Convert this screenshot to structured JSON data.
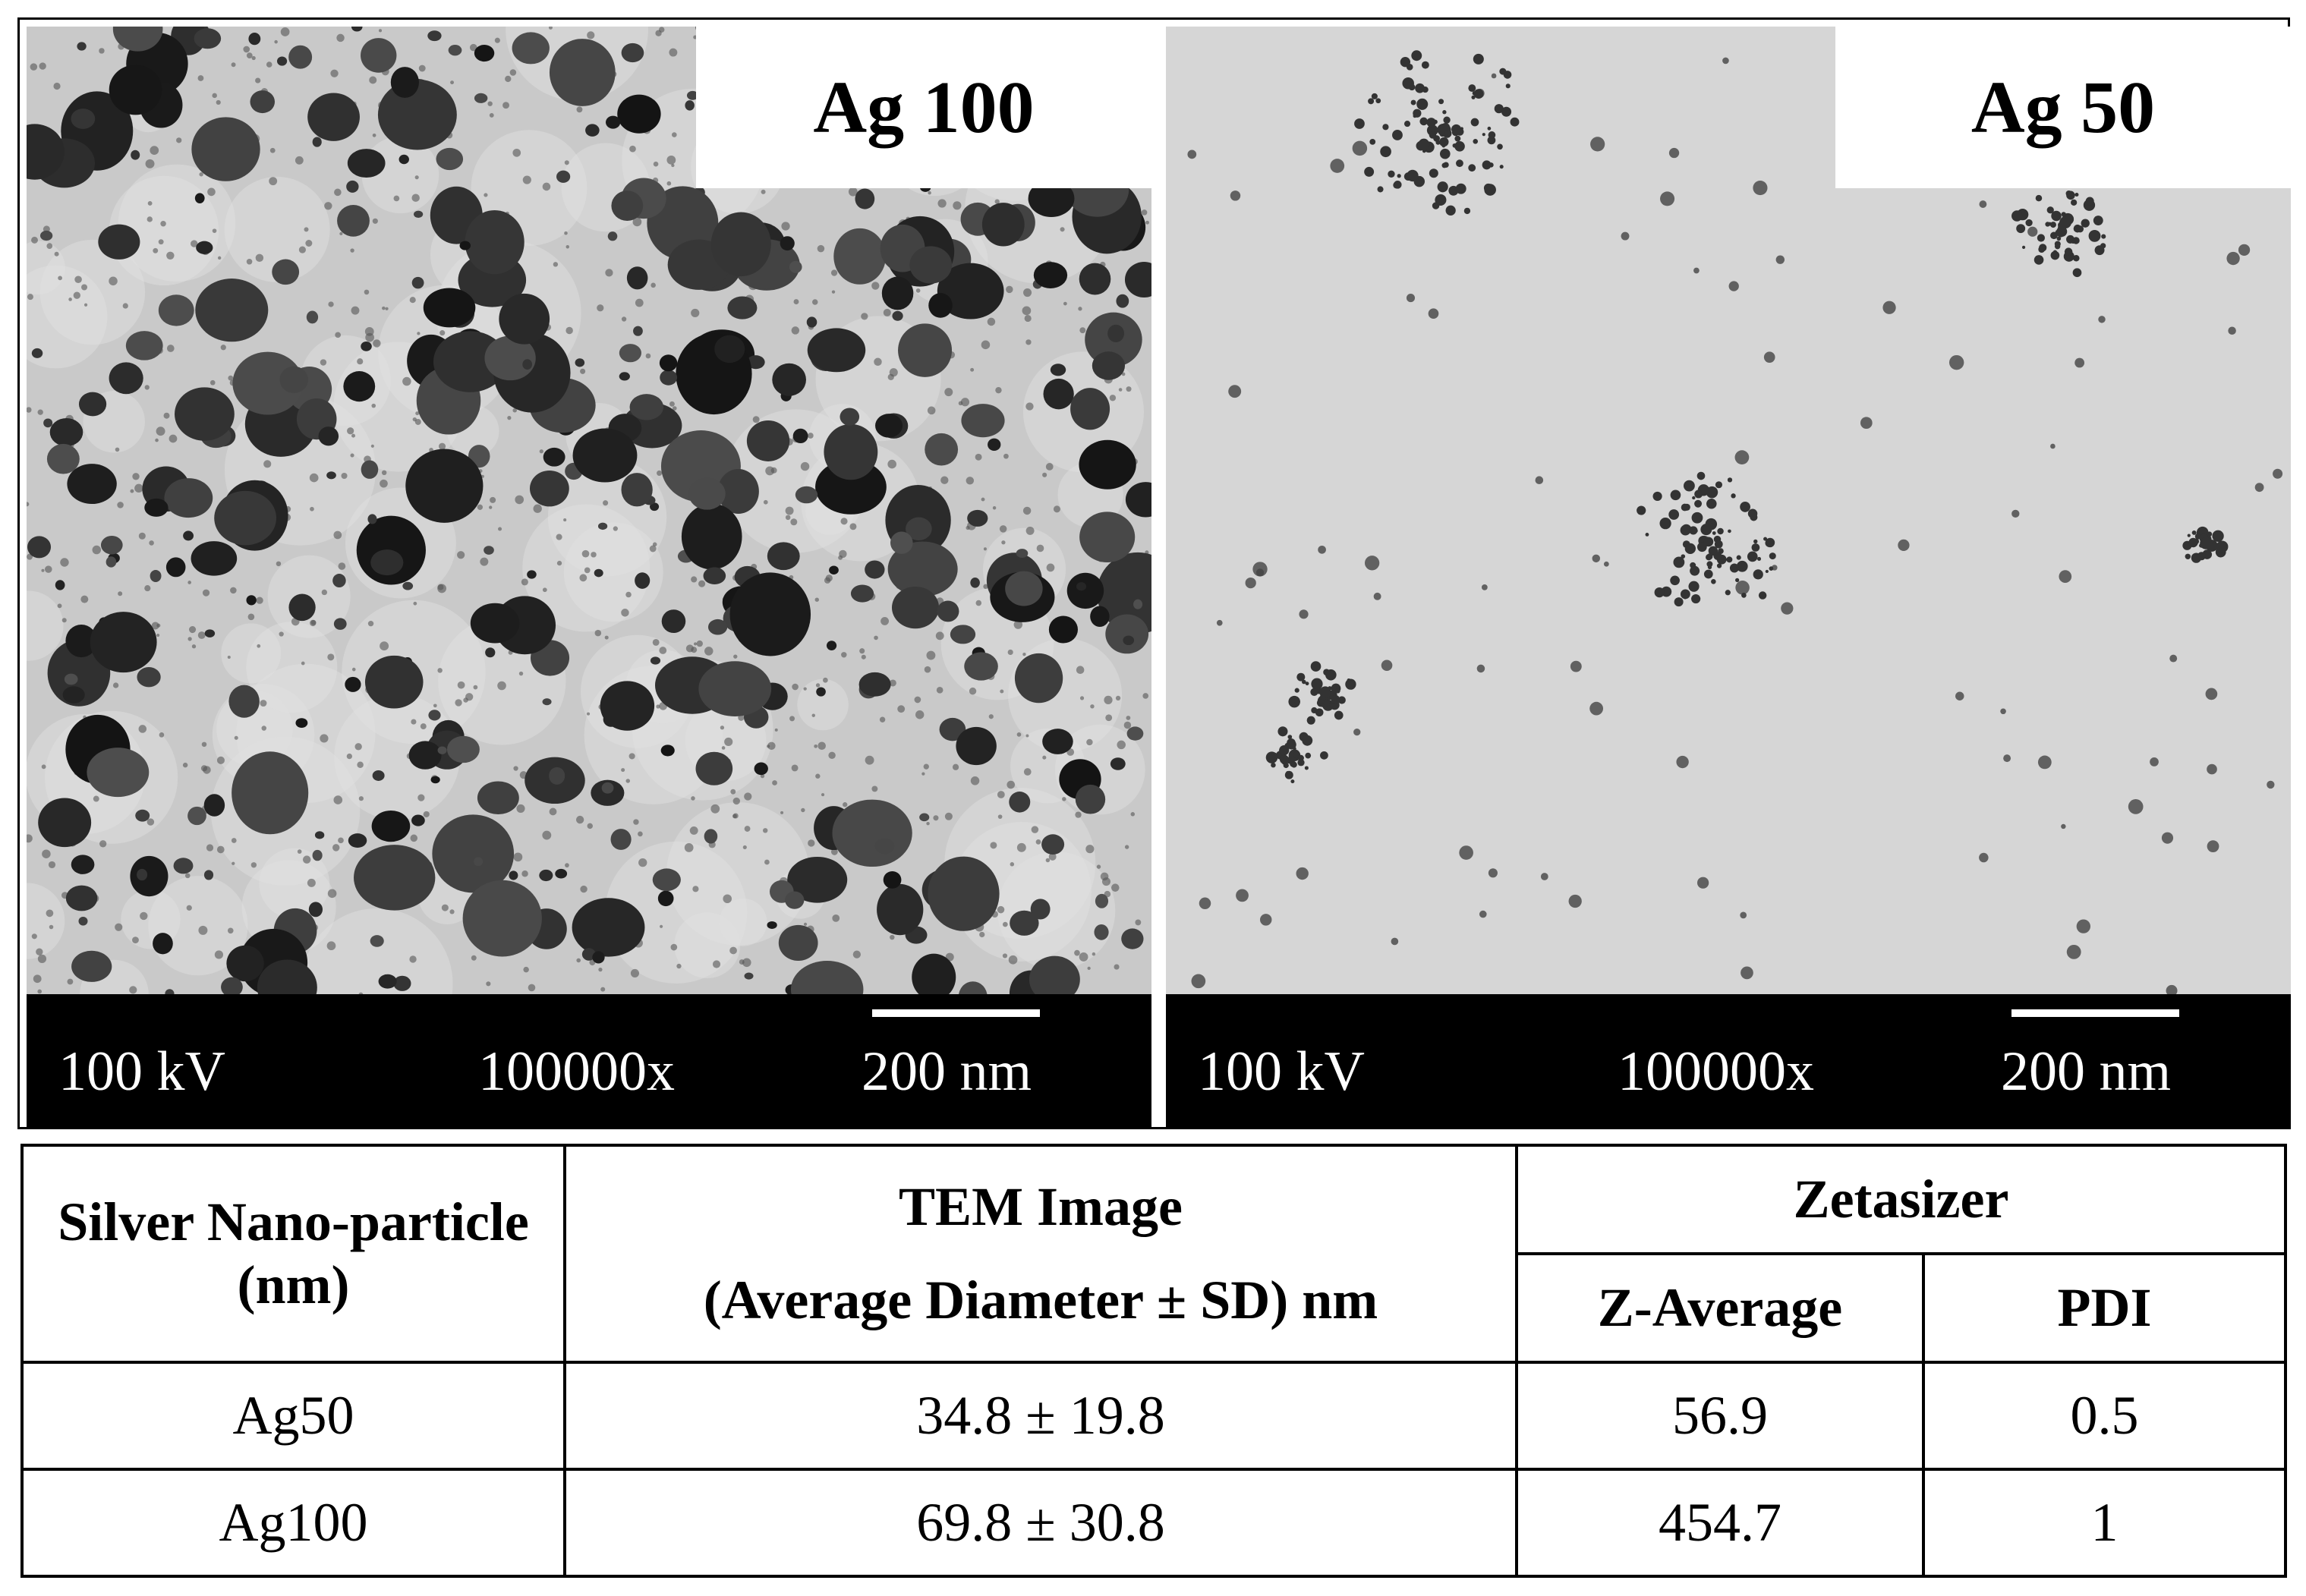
{
  "panels": [
    {
      "label": "Ag 100",
      "voltage": "100 kV",
      "magnification": "100000x",
      "scale_bar": "200 nm"
    },
    {
      "label": "Ag 50",
      "voltage": "100 kV",
      "magnification": "100000x",
      "scale_bar": "200 nm"
    }
  ],
  "table": {
    "header": {
      "particle": "Silver Nano-particle (nm)",
      "tem_title": "TEM Image",
      "tem_subtitle": "(Average Diameter ± SD) nm",
      "zetasizer": "Zetasizer",
      "z_average": "Z-Average",
      "pdi": "PDI"
    },
    "rows": [
      [
        "Ag50",
        "34.8 ± 19.8",
        "56.9",
        "0.5"
      ],
      [
        "Ag100",
        "69.8 ± 30.8",
        "454.7",
        "1"
      ]
    ]
  }
}
